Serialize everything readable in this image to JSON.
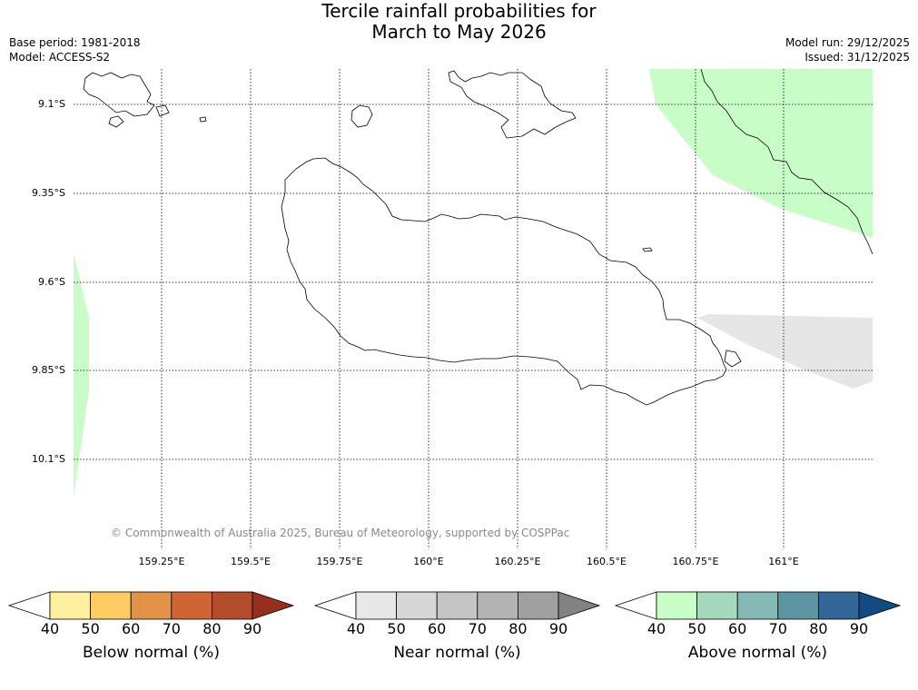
{
  "header": {
    "title_line1": "Tercile rainfall probabilities for",
    "title_line2": "March to May 2026",
    "base_period": "Base period: 1981-2018",
    "model": "Model: ACCESS-S2",
    "model_run": "Model run: 29/12/2025",
    "issued": "Issued: 31/12/2025"
  },
  "map": {
    "copyright": "© Commonwealth of Australia 2025, Bureau of Meteorology, supported by COSPPac",
    "lat_labels": [
      "9.1°S",
      "9.35°S",
      "9.6°S",
      "9.85°S",
      "10.1°S"
    ],
    "lon_labels": [
      "159.25°E",
      "159.5°E",
      "159.75°E",
      "160°E",
      "160.25°E",
      "160.5°E",
      "160.75°E",
      "161°E"
    ]
  },
  "chart_data": {
    "type": "heatmap",
    "title": "Tercile rainfall probabilities for March to May 2026",
    "lat_ticks": [
      -9.1,
      -9.35,
      -9.6,
      -9.85,
      -10.1
    ],
    "lon_ticks": [
      159.25,
      159.5,
      159.75,
      160.0,
      160.25,
      160.5,
      160.75,
      161.0
    ],
    "regions": [
      {
        "category": "Above normal",
        "probability_band": "40-50",
        "location": "north-east corner"
      },
      {
        "category": "Above normal",
        "probability_band": "40-50",
        "location": "west edge"
      },
      {
        "category": "Near normal",
        "probability_band": "40-50",
        "location": "south-east"
      }
    ],
    "colorbars": [
      {
        "label": "Below normal (%)",
        "ticks": [
          40,
          50,
          60,
          70,
          80,
          90
        ],
        "colors": [
          "#ffffff",
          "#fff0a0",
          "#fecb63",
          "#e39347",
          "#cf6535",
          "#b34c2a",
          "#96301c"
        ]
      },
      {
        "label": "Near normal (%)",
        "ticks": [
          40,
          50,
          60,
          70,
          80,
          90
        ],
        "colors": [
          "#ffffff",
          "#e8e8e8",
          "#d7d7d7",
          "#c5c5c5",
          "#b3b3b3",
          "#a0a0a0",
          "#828282"
        ]
      },
      {
        "label": "Above normal (%)",
        "ticks": [
          40,
          50,
          60,
          70,
          80,
          90
        ],
        "colors": [
          "#ffffff",
          "#c8fdc8",
          "#a6d8bd",
          "#84b9b5",
          "#5d95a3",
          "#336699",
          "#124a82"
        ]
      }
    ]
  }
}
